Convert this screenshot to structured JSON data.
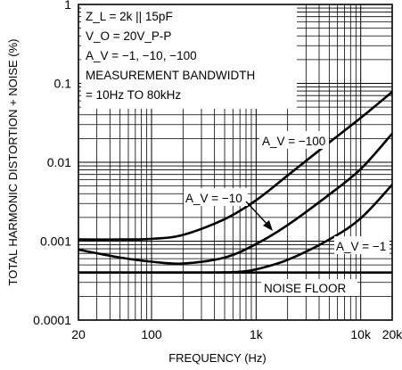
{
  "chart_data": {
    "type": "line",
    "title": "",
    "xlabel": "FREQUENCY (Hz)",
    "ylabel": "TOTAL HARMONIC DISTORTION + NOISE (%)",
    "xscale": "log",
    "yscale": "log",
    "xlim": [
      20,
      20000
    ],
    "ylim": [
      0.0001,
      1
    ],
    "grid": true,
    "x_ticks": [
      {
        "value": 20,
        "label": "20"
      },
      {
        "value": 100,
        "label": "100"
      },
      {
        "value": 1000,
        "label": "1k"
      },
      {
        "value": 10000,
        "label": "10k"
      },
      {
        "value": 20000,
        "label": "20k"
      }
    ],
    "y_ticks": [
      {
        "value": 1,
        "label": "1"
      },
      {
        "value": 0.1,
        "label": "0.1"
      },
      {
        "value": 0.01,
        "label": "0.01"
      },
      {
        "value": 0.001,
        "label": "0.001"
      },
      {
        "value": 0.0001,
        "label": "0.0001"
      }
    ],
    "conditions": [
      "Z_L = 2k || 15pF",
      "V_O = 20V_P-P",
      "A_V = −1, −10, −100",
      "MEASUREMENT BANDWIDTH",
      "= 10Hz TO 80kHz"
    ],
    "series": [
      {
        "name": "A_V = −100",
        "x": [
          20,
          50,
          100,
          200,
          500,
          1000,
          2000,
          5000,
          10000,
          20000
        ],
        "y": [
          0.00105,
          0.00105,
          0.00107,
          0.0012,
          0.0019,
          0.0033,
          0.0068,
          0.0178,
          0.0365,
          0.078
        ]
      },
      {
        "name": "A_V = −10",
        "x": [
          20,
          50,
          100,
          200,
          500,
          1000,
          2000,
          5000,
          10000,
          20000
        ],
        "y": [
          0.00078,
          0.00062,
          0.00055,
          0.00052,
          0.00062,
          0.00092,
          0.0016,
          0.0039,
          0.0082,
          0.0231
        ]
      },
      {
        "name": "A_V = −1",
        "x": [
          20,
          100,
          400,
          700,
          1000,
          2000,
          5000,
          10000,
          20000
        ],
        "y": [
          0.0004,
          0.0004,
          0.0004,
          0.00041,
          0.00044,
          0.00058,
          0.00105,
          0.00195,
          0.0052
        ]
      },
      {
        "name": "NOISE FLOOR",
        "x": [
          20,
          20000
        ],
        "y": [
          0.0004,
          0.0004
        ]
      }
    ]
  }
}
